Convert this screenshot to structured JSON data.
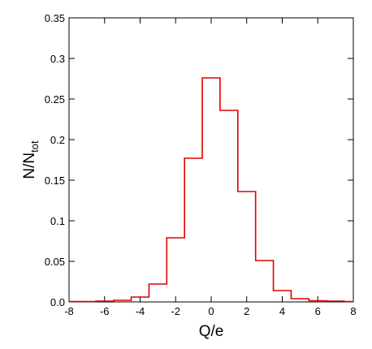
{
  "chart_data": {
    "type": "bar",
    "subtype": "step-histogram",
    "xlabel": "Q/e",
    "ylabel_main": "N/N",
    "ylabel_sub": "tot",
    "xlim": [
      -8,
      8
    ],
    "ylim": [
      0,
      0.35
    ],
    "x_ticks": [
      -8,
      -6,
      -4,
      -2,
      0,
      2,
      4,
      6,
      8
    ],
    "x_tick_labels": [
      "-8",
      "-6",
      "-4",
      "-2",
      "0",
      "2",
      "4",
      "6",
      "8"
    ],
    "y_ticks": [
      0,
      0.05,
      0.1,
      0.15,
      0.2,
      0.25,
      0.3,
      0.35
    ],
    "y_tick_labels": [
      "0.0",
      "0.05",
      "0.1",
      "0.15",
      "0.2",
      "0.25",
      "0.3",
      "0.35"
    ],
    "grid": false,
    "series_color": "#e00000",
    "bin_width": 1,
    "bin_centers": [
      -8,
      -7,
      -6,
      -5,
      -4,
      -3,
      -2,
      -1,
      0,
      1,
      2,
      3,
      4,
      5,
      6,
      7,
      8
    ],
    "values": [
      0.0005,
      0.0005,
      0.001,
      0.002,
      0.006,
      0.022,
      0.079,
      0.177,
      0.276,
      0.236,
      0.136,
      0.051,
      0.014,
      0.004,
      0.0015,
      0.001,
      0.0005
    ]
  }
}
